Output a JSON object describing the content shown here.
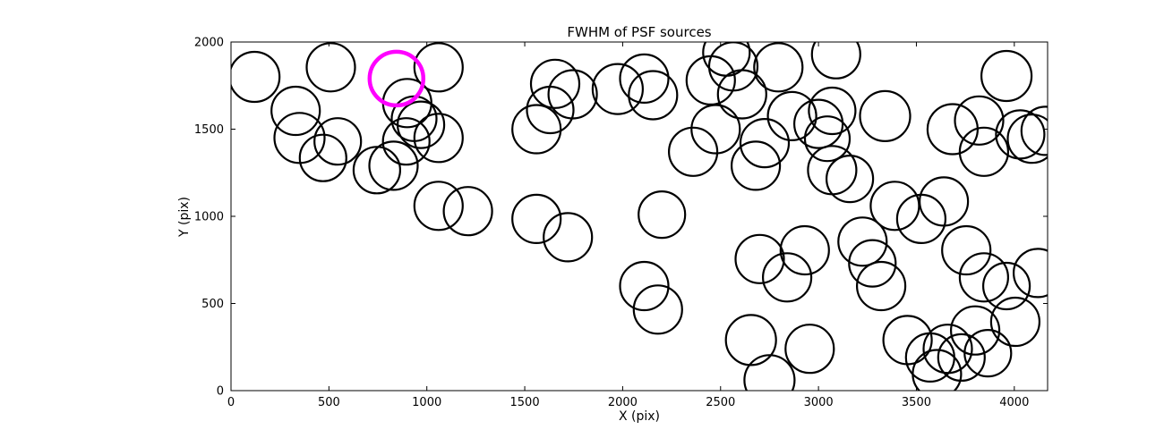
{
  "chart_data": {
    "type": "scatter",
    "title": "FWHM of PSF sources",
    "xlabel": "X (pix)",
    "ylabel": "Y (pix)",
    "xlim": [
      0,
      4170
    ],
    "ylim": [
      0,
      2000
    ],
    "xticks": [
      0,
      500,
      1000,
      1500,
      2000,
      2500,
      3000,
      3500,
      4000
    ],
    "yticks": [
      0,
      500,
      1000,
      1500,
      2000
    ],
    "grid": false,
    "legend": "none",
    "marker_style": {
      "fill": "none",
      "stroke": "#000000",
      "stroke_width": 2.2
    },
    "highlight_point": {
      "x": 845,
      "y": 1790,
      "r": 30,
      "stroke": "#ff00ff",
      "stroke_width": 4.5
    },
    "points": [
      [
        120,
        1800,
        28
      ],
      [
        510,
        1855,
        27
      ],
      [
        1060,
        1855,
        27
      ],
      [
        330,
        1605,
        27
      ],
      [
        350,
        1450,
        28
      ],
      [
        470,
        1335,
        26
      ],
      [
        545,
        1430,
        26
      ],
      [
        900,
        1650,
        27
      ],
      [
        935,
        1560,
        25
      ],
      [
        970,
        1525,
        26
      ],
      [
        895,
        1430,
        26
      ],
      [
        1060,
        1450,
        27
      ],
      [
        830,
        1290,
        27
      ],
      [
        745,
        1265,
        26
      ],
      [
        1060,
        1060,
        27
      ],
      [
        1210,
        1030,
        27
      ],
      [
        1560,
        1500,
        27
      ],
      [
        1630,
        1610,
        26
      ],
      [
        1655,
        1760,
        27
      ],
      [
        1745,
        1700,
        27
      ],
      [
        1560,
        985,
        27
      ],
      [
        1720,
        880,
        27
      ],
      [
        1975,
        1730,
        28
      ],
      [
        2110,
        1790,
        27
      ],
      [
        2155,
        1695,
        27
      ],
      [
        2200,
        1010,
        26
      ],
      [
        2110,
        600,
        27
      ],
      [
        2180,
        465,
        27
      ],
      [
        2360,
        1370,
        27
      ],
      [
        2475,
        1500,
        27
      ],
      [
        2450,
        1780,
        27
      ],
      [
        2565,
        1860,
        27
      ],
      [
        2530,
        1940,
        26
      ],
      [
        2610,
        1700,
        27
      ],
      [
        2680,
        1290,
        27
      ],
      [
        2725,
        1420,
        27
      ],
      [
        2795,
        1855,
        27
      ],
      [
        2865,
        1575,
        27
      ],
      [
        3000,
        1530,
        27
      ],
      [
        3070,
        1605,
        26
      ],
      [
        3045,
        1445,
        25
      ],
      [
        3090,
        1930,
        27
      ],
      [
        2700,
        755,
        27
      ],
      [
        2840,
        650,
        27
      ],
      [
        2930,
        805,
        27
      ],
      [
        3070,
        1265,
        27
      ],
      [
        3160,
        1215,
        26
      ],
      [
        3225,
        855,
        27
      ],
      [
        3275,
        730,
        26
      ],
      [
        3320,
        600,
        27
      ],
      [
        3390,
        1060,
        27
      ],
      [
        3340,
        1575,
        28
      ],
      [
        3525,
        985,
        27
      ],
      [
        3640,
        1085,
        27
      ],
      [
        3685,
        1500,
        28
      ],
      [
        3820,
        1550,
        27
      ],
      [
        3845,
        1370,
        27
      ],
      [
        3960,
        1805,
        28
      ],
      [
        4030,
        1470,
        27
      ],
      [
        4090,
        1445,
        27
      ],
      [
        4160,
        1490,
        27
      ],
      [
        3755,
        805,
        27
      ],
      [
        3845,
        650,
        27
      ],
      [
        3960,
        600,
        26
      ],
      [
        4120,
        675,
        27
      ],
      [
        3455,
        290,
        27
      ],
      [
        3570,
        190,
        27
      ],
      [
        3660,
        240,
        27
      ],
      [
        3730,
        190,
        26
      ],
      [
        3800,
        345,
        27
      ],
      [
        3865,
        215,
        26
      ],
      [
        4005,
        395,
        27
      ],
      [
        3605,
        95,
        27
      ],
      [
        2655,
        290,
        28
      ],
      [
        2750,
        60,
        28
      ],
      [
        2955,
        240,
        27
      ]
    ]
  }
}
